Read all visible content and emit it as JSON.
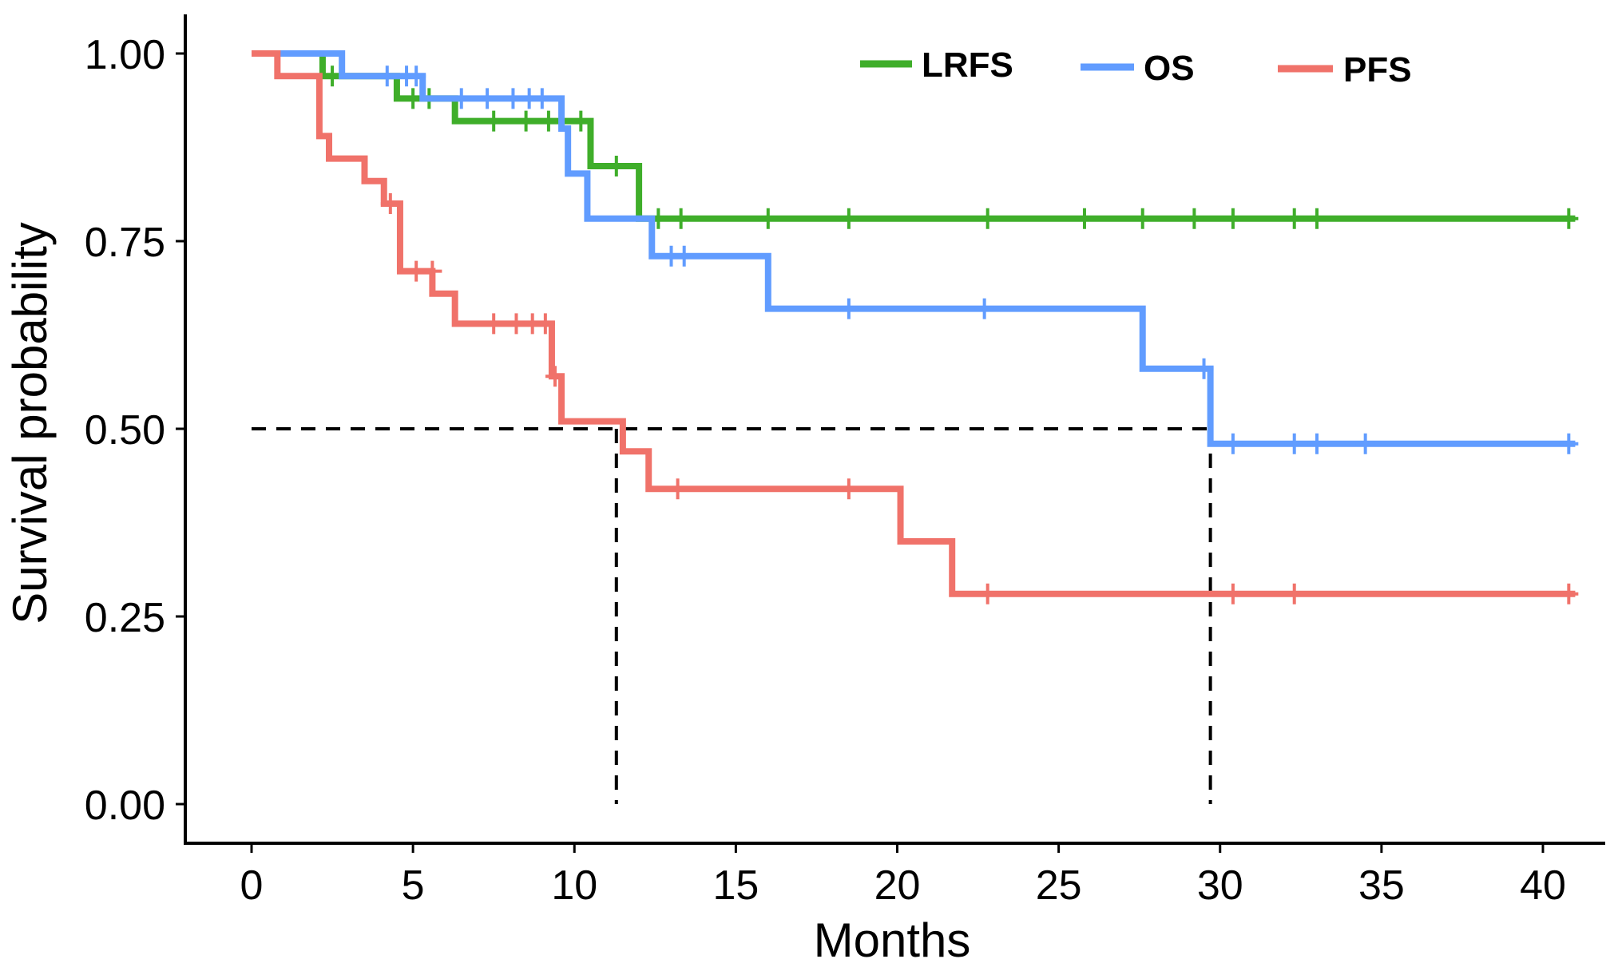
{
  "chart_data": {
    "type": "line",
    "subtype": "kaplan-meier-step",
    "title": "",
    "xlabel": "Months",
    "ylabel": "Survival probability",
    "xlim": [
      0,
      42
    ],
    "ylim": [
      0,
      1
    ],
    "x_ticks": [
      0,
      5,
      10,
      15,
      20,
      25,
      30,
      35,
      40
    ],
    "y_ticks": [
      0,
      0.25,
      0.5,
      0.75,
      1
    ],
    "x_tick_labels": [
      "0",
      "5",
      "10",
      "15",
      "20",
      "25",
      "30",
      "35",
      "40"
    ],
    "y_tick_labels": [
      "0.00",
      "0.25",
      "0.50",
      "0.75",
      "1.00"
    ],
    "grid": false,
    "legend": {
      "position": "top-right",
      "entries": [
        "LRFS",
        "OS",
        "PFS"
      ]
    },
    "series": [
      {
        "name": "LRFS",
        "color": "#3fae2a",
        "steps": [
          [
            0,
            1.0
          ],
          [
            2.2,
            0.97
          ],
          [
            4.5,
            0.94
          ],
          [
            6.3,
            0.91
          ],
          [
            10.5,
            0.85
          ],
          [
            12.0,
            0.78
          ],
          [
            41.0,
            0.78
          ]
        ],
        "censor": [
          [
            2.5,
            0.97
          ],
          [
            5.0,
            0.94
          ],
          [
            5.5,
            0.94
          ],
          [
            7.5,
            0.91
          ],
          [
            8.5,
            0.91
          ],
          [
            9.2,
            0.91
          ],
          [
            10.2,
            0.91
          ],
          [
            11.3,
            0.85
          ],
          [
            12.6,
            0.78
          ],
          [
            13.3,
            0.78
          ],
          [
            16.0,
            0.78
          ],
          [
            18.5,
            0.78
          ],
          [
            22.8,
            0.78
          ],
          [
            25.8,
            0.78
          ],
          [
            27.6,
            0.78
          ],
          [
            29.2,
            0.78
          ],
          [
            30.4,
            0.78
          ],
          [
            32.3,
            0.78
          ],
          [
            33.0,
            0.78
          ],
          [
            40.8,
            0.78
          ]
        ]
      },
      {
        "name": "OS",
        "color": "#619cff",
        "steps": [
          [
            0,
            1.0
          ],
          [
            2.8,
            0.97
          ],
          [
            5.3,
            0.94
          ],
          [
            9.6,
            0.9
          ],
          [
            9.8,
            0.84
          ],
          [
            10.4,
            0.78
          ],
          [
            12.4,
            0.73
          ],
          [
            16.0,
            0.66
          ],
          [
            27.6,
            0.58
          ],
          [
            29.7,
            0.48
          ],
          [
            41.0,
            0.48
          ]
        ],
        "censor": [
          [
            4.2,
            0.97
          ],
          [
            4.8,
            0.97
          ],
          [
            5.1,
            0.97
          ],
          [
            6.5,
            0.94
          ],
          [
            7.3,
            0.94
          ],
          [
            8.1,
            0.94
          ],
          [
            8.6,
            0.94
          ],
          [
            9.0,
            0.94
          ],
          [
            13.0,
            0.73
          ],
          [
            13.4,
            0.73
          ],
          [
            18.5,
            0.66
          ],
          [
            22.7,
            0.66
          ],
          [
            29.5,
            0.58
          ],
          [
            30.4,
            0.48
          ],
          [
            32.3,
            0.48
          ],
          [
            33.0,
            0.48
          ],
          [
            34.5,
            0.48
          ],
          [
            40.8,
            0.48
          ]
        ]
      },
      {
        "name": "PFS",
        "color": "#f0726a",
        "steps": [
          [
            0,
            1.0
          ],
          [
            0.8,
            0.97
          ],
          [
            2.1,
            0.89
          ],
          [
            2.4,
            0.86
          ],
          [
            3.5,
            0.83
          ],
          [
            4.1,
            0.8
          ],
          [
            4.6,
            0.71
          ],
          [
            5.6,
            0.68
          ],
          [
            6.3,
            0.64
          ],
          [
            9.3,
            0.57
          ],
          [
            9.6,
            0.51
          ],
          [
            11.5,
            0.47
          ],
          [
            12.3,
            0.42
          ],
          [
            20.1,
            0.35
          ],
          [
            21.7,
            0.28
          ],
          [
            41.0,
            0.28
          ]
        ],
        "censor": [
          [
            4.3,
            0.8
          ],
          [
            5.1,
            0.71
          ],
          [
            5.6,
            0.71
          ],
          [
            7.5,
            0.64
          ],
          [
            8.2,
            0.64
          ],
          [
            8.7,
            0.64
          ],
          [
            9.1,
            0.64
          ],
          [
            9.4,
            0.57
          ],
          [
            13.2,
            0.42
          ],
          [
            18.5,
            0.42
          ],
          [
            22.8,
            0.28
          ],
          [
            30.4,
            0.28
          ],
          [
            32.3,
            0.28
          ],
          [
            40.8,
            0.28
          ]
        ]
      }
    ],
    "reference_lines": [
      {
        "name": "median-survival-hline",
        "from": [
          0,
          0.5
        ],
        "to": [
          29.7,
          0.5
        ]
      },
      {
        "name": "median-pfs-vline",
        "from": [
          11.3,
          0.5
        ],
        "to": [
          11.3,
          0
        ]
      },
      {
        "name": "median-os-vline",
        "from": [
          29.7,
          0.5
        ],
        "to": [
          29.7,
          0
        ]
      }
    ]
  }
}
